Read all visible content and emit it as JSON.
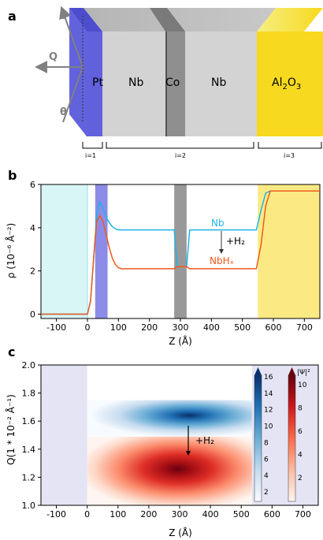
{
  "panel_a": {
    "label": "a",
    "layers": [
      "Pt",
      "Nb",
      "Co",
      "Nb",
      "Al2O3"
    ],
    "beam_labels": {
      "theta_top": "θ",
      "q": "Q",
      "theta_bottom": "θ"
    },
    "regions": [
      "i=1",
      "i=2",
      "i=3"
    ],
    "colors": {
      "pt": "#4545d8",
      "grey": "#cfcfcf",
      "co": "#8f8f8f",
      "al2o3": "#f7d91f"
    }
  },
  "panel_b": {
    "label": "b",
    "annotations": {
      "nb": "Nb",
      "h2": "+H₂",
      "nbhx": "NbHₓ"
    },
    "colors": {
      "nb": "#1fb4e6",
      "nbhx": "#f05a1e",
      "pt": "#2e2ed6",
      "co": "#808080",
      "al2o3": "#f7d91f",
      "substrate": "#8fe5e5"
    }
  },
  "panel_c": {
    "label": "c",
    "annotation": "+H₂",
    "colorbar_blue": {
      "ticks": [
        "2",
        "4",
        "6",
        "8",
        "10",
        "12",
        "14",
        "16"
      ]
    },
    "colorbar_red": {
      "label": "|Ψ|²",
      "ticks": [
        "2",
        "4",
        "6",
        "8",
        "10"
      ]
    }
  },
  "chart_data": [
    {
      "type": "line",
      "panel": "b",
      "ylabel": "ρ (10⁻⁶ Å⁻²)",
      "xlabel": "Z (Å)",
      "xlim": [
        -150,
        750
      ],
      "ylim": [
        -0.2,
        6
      ],
      "xticks": [
        "-100",
        "0",
        "100",
        "200",
        "300",
        "400",
        "500",
        "600",
        "700"
      ],
      "yticks": [
        "0",
        "2",
        "4",
        "6"
      ],
      "series": [
        {
          "name": "Nb",
          "x": [
            -150,
            0,
            10,
            20,
            30,
            40,
            50,
            60,
            70,
            80,
            90,
            100,
            120,
            280,
            290,
            300,
            310,
            320,
            330,
            545,
            560,
            575,
            590,
            750
          ],
          "y": [
            0,
            0,
            0.6,
            2.6,
            4.6,
            5.2,
            4.9,
            4.5,
            4.25,
            4.05,
            3.95,
            3.9,
            3.9,
            3.9,
            2.2,
            2.2,
            2.2,
            2.2,
            3.9,
            3.9,
            4.8,
            5.6,
            5.7,
            5.7
          ]
        },
        {
          "name": "NbHx",
          "x": [
            -150,
            0,
            10,
            20,
            30,
            40,
            50,
            60,
            70,
            80,
            90,
            100,
            110,
            120,
            280,
            290,
            320,
            330,
            545,
            560,
            575,
            590,
            750
          ],
          "y": [
            0,
            0,
            0.6,
            2.6,
            4.3,
            4.55,
            4.3,
            3.7,
            3.1,
            2.6,
            2.3,
            2.15,
            2.1,
            2.1,
            2.1,
            2.2,
            2.2,
            2.1,
            2.1,
            3.2,
            5.0,
            5.7,
            5.7
          ]
        }
      ]
    },
    {
      "type": "heatmap",
      "panel": "c",
      "xlabel": "Z (Å)",
      "ylabel": "Q(1 * 10⁻² Å⁻¹)",
      "xlim": [
        -150,
        750
      ],
      "ylim": [
        1.0,
        2.0
      ],
      "xticks": [
        "-100",
        "0",
        "100",
        "200",
        "300",
        "400",
        "500",
        "600",
        "700"
      ],
      "yticks": [
        "1.0",
        "1.2",
        "1.4",
        "1.6",
        "1.8",
        "2.0"
      ],
      "blue_band": {
        "z_range": [
          0,
          535
        ],
        "q_range": [
          1.49,
          1.75
        ],
        "peak_z": 360,
        "peak_q": 1.6,
        "max": 16
      },
      "red_band": {
        "z_range": [
          0,
          535
        ],
        "q_range": [
          1.0,
          1.49
        ],
        "peak_z": 320,
        "peak_q": 1.35,
        "max": 10
      }
    }
  ]
}
